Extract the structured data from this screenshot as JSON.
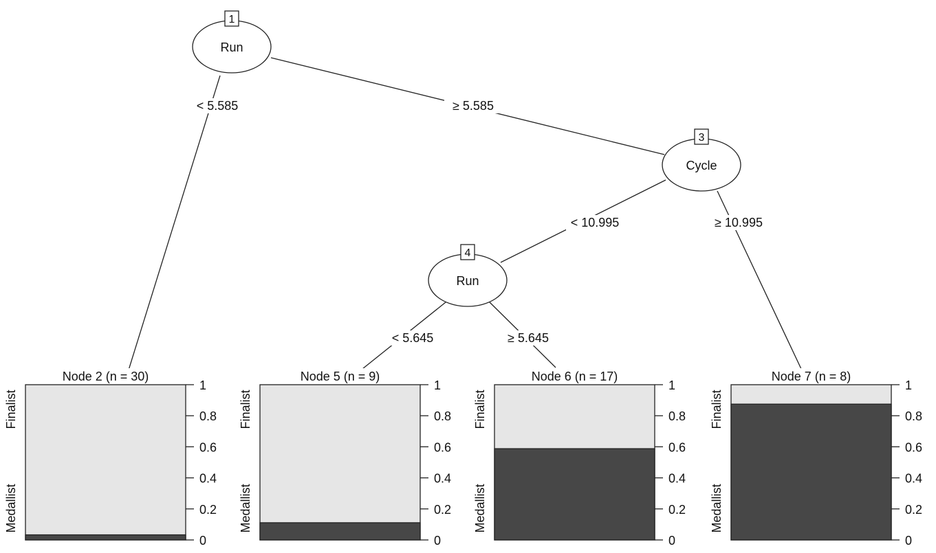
{
  "chart_data": {
    "type": "decision-tree",
    "inner_nodes": [
      {
        "id": "1",
        "variable": "Run"
      },
      {
        "id": "3",
        "variable": "Cycle"
      },
      {
        "id": "4",
        "variable": "Run"
      }
    ],
    "edges": [
      {
        "from": "1",
        "to": "2",
        "label": "< 5.585"
      },
      {
        "from": "1",
        "to": "3",
        "label": "≥ 5.585"
      },
      {
        "from": "3",
        "to": "4",
        "label": "< 10.995"
      },
      {
        "from": "3",
        "to": "7",
        "label": "≥ 10.995"
      },
      {
        "from": "4",
        "to": "5",
        "label": "< 5.645"
      },
      {
        "from": "4",
        "to": "6",
        "label": "≥ 5.645"
      }
    ],
    "terminal_nodes": [
      {
        "id": "2",
        "title": "Node 2 (n = 30)",
        "n": 30,
        "medallist_proportion": 0.033
      },
      {
        "id": "5",
        "title": "Node 5 (n = 9)",
        "n": 9,
        "medallist_proportion": 0.111
      },
      {
        "id": "6",
        "title": "Node 6 (n = 17)",
        "n": 17,
        "medallist_proportion": 0.588
      },
      {
        "id": "7",
        "title": "Node 7 (n = 8)",
        "n": 8,
        "medallist_proportion": 0.875
      }
    ],
    "classes": [
      "Finalist",
      "Medallist"
    ],
    "y_ticks": [
      "0",
      "0.2",
      "0.4",
      "0.6",
      "0.8",
      "1"
    ],
    "ylim": [
      0,
      1
    ],
    "colors": {
      "medallist": "#474747",
      "finalist": "#e6e6e6"
    }
  }
}
